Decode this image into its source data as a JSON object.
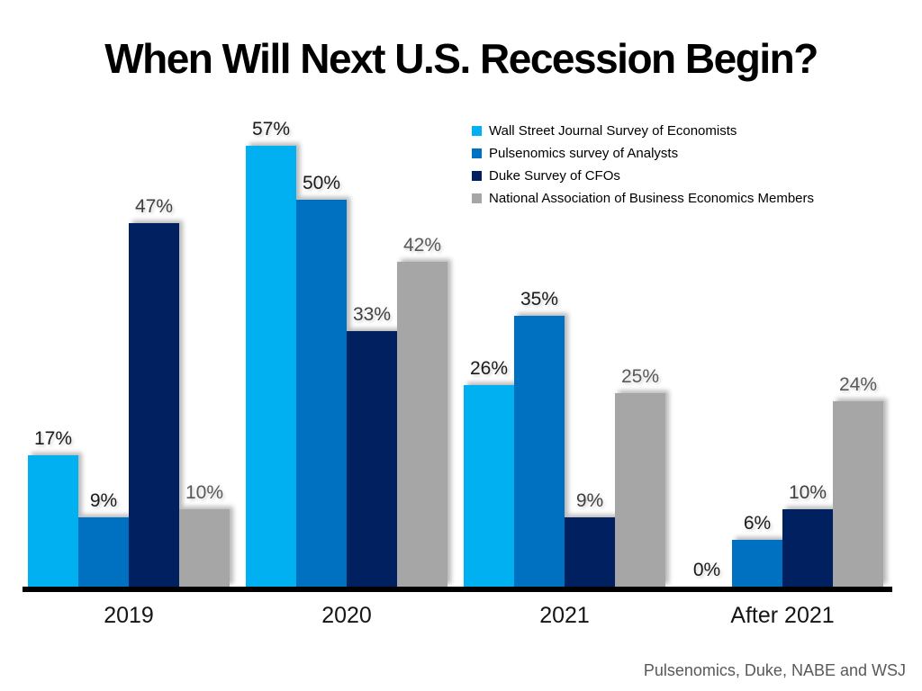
{
  "title": "When Will Next U.S. Recession Begin?",
  "footer": "Pulsenomics, Duke, NABE and WSJ",
  "colors": {
    "background": "#ffffff",
    "axis": "#000000",
    "footer_text": "#595959"
  },
  "chart_data": {
    "type": "bar",
    "title": "When Will Next U.S. Recession Begin?",
    "categories": [
      "2019",
      "2020",
      "2021",
      "After 2021"
    ],
    "series": [
      {
        "name": "Wall Street Journal Survey of Economists",
        "color": "#00B0F0",
        "values": [
          17,
          57,
          26,
          0
        ]
      },
      {
        "name": "Pulsenomics survey of Analysts",
        "color": "#0070C0",
        "values": [
          9,
          50,
          35,
          6
        ]
      },
      {
        "name": "Duke Survey of CFOs",
        "color": "#002060",
        "values": [
          47,
          33,
          9,
          10
        ]
      },
      {
        "name": "National Association of Business Economics Members",
        "color": "#A6A6A6",
        "values": [
          10,
          42,
          25,
          24
        ]
      }
    ],
    "value_suffix": "%",
    "label_colors": [
      "#1a1a1a",
      "#1a1a1a",
      "#404040",
      "#595959"
    ],
    "ylim": [
      0,
      60
    ],
    "grid": false,
    "legend_position": "top-right",
    "xlabel": "",
    "ylabel": "",
    "source_note": "Pulsenomics, Duke, NABE and WSJ"
  }
}
